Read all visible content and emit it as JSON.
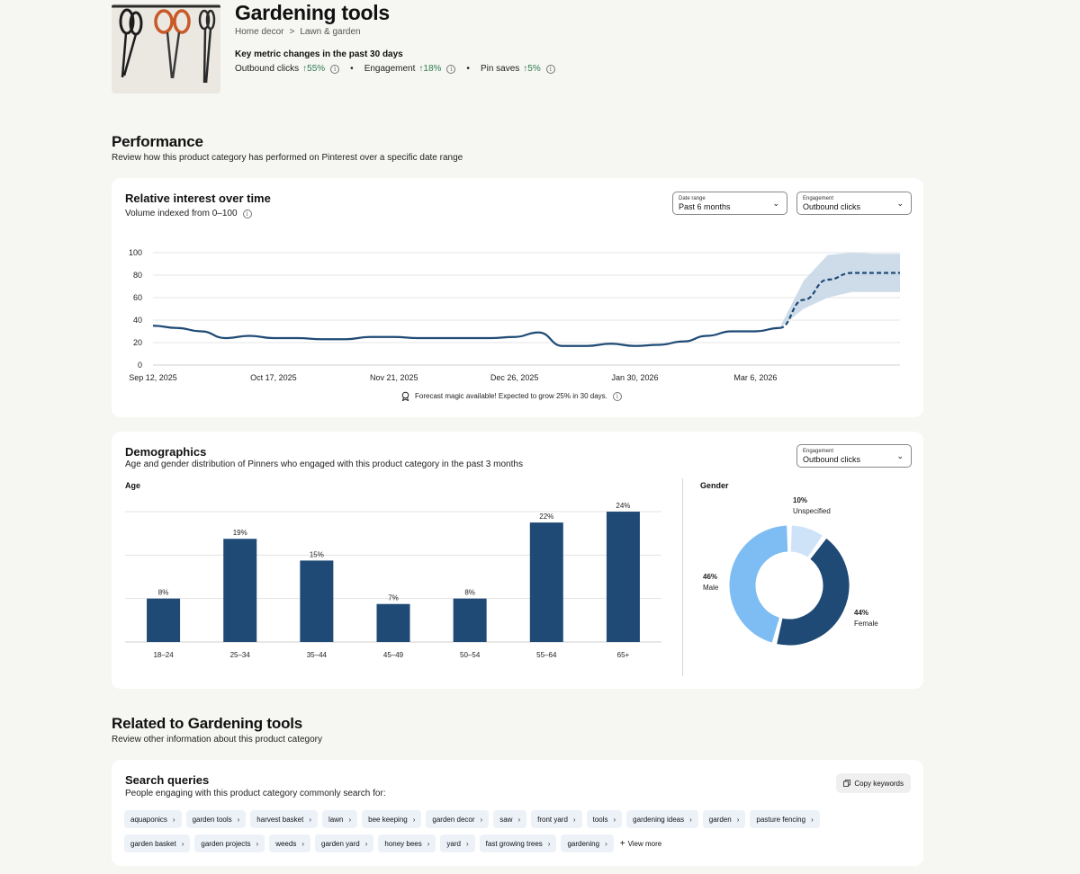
{
  "header": {
    "title": "Gardening tools",
    "breadcrumb": [
      "Home decor",
      ">",
      "Lawn & garden"
    ],
    "metrics_heading": "Key metric changes in the past 30 days",
    "metrics": [
      {
        "label": "Outbound clicks",
        "change": "↑55%"
      },
      {
        "label": "Engagement",
        "change": "↑18%"
      },
      {
        "label": "Pin saves",
        "change": "↑5%"
      }
    ],
    "bullet": "•"
  },
  "performance": {
    "title": "Performance",
    "subtitle": "Review how this product category has performed on Pinterest over a specific date range"
  },
  "interest_card": {
    "title": "Relative interest over time",
    "subtitle": "Volume indexed from 0–100",
    "date_dropdown": {
      "label": "Date range",
      "value": "Past 6 months"
    },
    "metric_dropdown": {
      "label": "Engagement",
      "value": "Outbound clicks"
    },
    "forecast_note": "Forecast magic available! Expected to grow 25% in 30 days."
  },
  "demographics": {
    "title": "Demographics",
    "subtitle": "Age and gender distribution of Pinners who engaged with this product category in the past 3 months",
    "dropdown": {
      "label": "Engagement",
      "value": "Outbound clicks"
    },
    "age_label": "Age",
    "gender_label": "Gender"
  },
  "related": {
    "title": "Related to Gardening tools",
    "subtitle": "Review other information about this product category"
  },
  "search_queries": {
    "title": "Search queries",
    "subtitle": "People engaging with this product category commonly search for:",
    "copy_label": "Copy keywords",
    "row1": [
      "aquaponics",
      "garden tools",
      "harvest basket",
      "lawn",
      "bee keeping",
      "garden decor",
      "saw",
      "front yard",
      "tools",
      "gardening ideas",
      "garden",
      "pasture fencing"
    ],
    "row2": [
      "garden basket",
      "garden projects",
      "weeds",
      "garden yard",
      "honey bees",
      "yard",
      "fast growing trees",
      "gardening"
    ],
    "view_more": "View more"
  },
  "colors": {
    "navy": "#1e4a75",
    "light_blue": "#7dbdf3",
    "pale_blue": "#cfe3f8",
    "band": "#c6d6e6",
    "up_green": "#2e7d4f"
  },
  "chart_data": [
    {
      "type": "line",
      "title": "Relative interest over time",
      "ylim": [
        0,
        100
      ],
      "yticks": [
        0,
        20,
        40,
        60,
        80,
        100
      ],
      "x_tick_labels": [
        "Sep 12, 2025",
        "Oct 17, 2025",
        "Nov 21, 2025",
        "Dec 26, 2025",
        "Jan 30, 2026",
        "Mar 6, 2026"
      ],
      "series": [
        {
          "kind": "actual",
          "x": [
            "2025-09-12",
            "2025-09-19",
            "2025-09-26",
            "2025-10-03",
            "2025-10-10",
            "2025-10-17",
            "2025-10-24",
            "2025-10-31",
            "2025-11-07",
            "2025-11-14",
            "2025-11-21",
            "2025-11-28",
            "2025-12-05",
            "2025-12-12",
            "2025-12-19",
            "2025-12-26",
            "2026-01-02",
            "2026-01-09",
            "2026-01-16",
            "2026-01-23",
            "2026-01-30",
            "2026-02-06",
            "2026-02-13",
            "2026-02-20",
            "2026-02-27",
            "2026-03-06",
            "2026-03-13"
          ],
          "y": [
            35,
            33,
            30,
            24,
            26,
            24,
            24,
            23,
            23,
            25,
            25,
            24,
            24,
            24,
            24,
            25,
            29,
            17,
            17,
            19,
            17,
            18,
            21,
            26,
            30,
            30,
            33
          ]
        },
        {
          "kind": "forecast",
          "x": [
            "2026-03-13",
            "2026-03-20",
            "2026-03-27",
            "2026-04-03",
            "2026-04-10",
            "2026-04-17"
          ],
          "y": [
            33,
            58,
            76,
            82,
            82,
            82
          ],
          "upper": [
            33,
            75,
            98,
            100,
            99,
            99
          ],
          "lower": [
            33,
            50,
            60,
            65,
            65,
            65
          ]
        }
      ],
      "grid": true
    },
    {
      "type": "bar",
      "title": "Age",
      "categories": [
        "18–24",
        "25–34",
        "35–44",
        "45–49",
        "50–54",
        "55–64",
        "65+"
      ],
      "values": [
        8,
        19,
        15,
        7,
        8,
        22,
        24
      ],
      "value_labels": [
        "8%",
        "19%",
        "15%",
        "7%",
        "8%",
        "22%",
        "24%"
      ],
      "ylim": [
        0,
        25
      ],
      "grid": true
    },
    {
      "type": "pie",
      "title": "Gender",
      "categories": [
        "Unspecified",
        "Female",
        "Male"
      ],
      "values": [
        10,
        44,
        46
      ],
      "value_labels": [
        "10%",
        "44%",
        "46%"
      ]
    }
  ]
}
